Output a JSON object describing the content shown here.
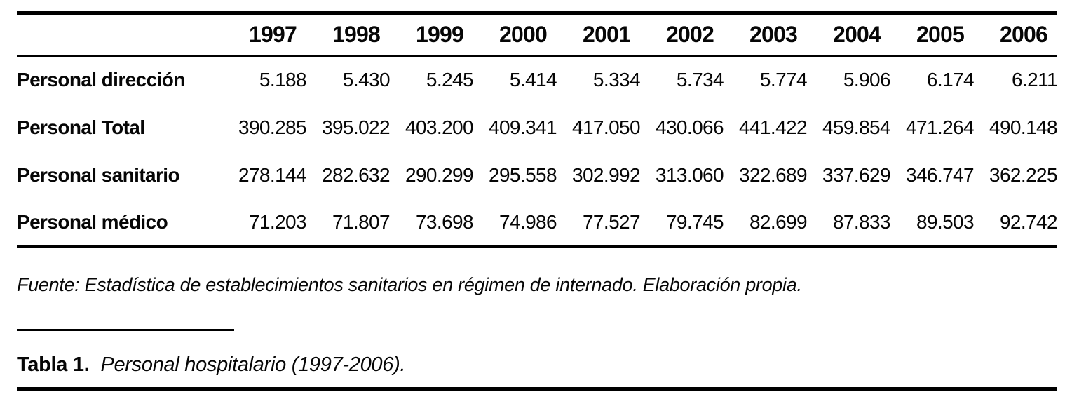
{
  "colors": {
    "ink": "#000000",
    "background": "#ffffff"
  },
  "table": {
    "years": [
      "1997",
      "1998",
      "1999",
      "2000",
      "2001",
      "2002",
      "2003",
      "2004",
      "2005",
      "2006"
    ],
    "rows": [
      {
        "label": "Personal dirección",
        "values": [
          "5.188",
          "5.430",
          "5.245",
          "5.414",
          "5.334",
          "5.734",
          "5.774",
          "5.906",
          "6.174",
          "6.211"
        ]
      },
      {
        "label": "Personal Total",
        "values": [
          "390.285",
          "395.022",
          "403.200",
          "409.341",
          "417.050",
          "430.066",
          "441.422",
          "459.854",
          "471.264",
          "490.148"
        ]
      },
      {
        "label": "Personal sanitario",
        "values": [
          "278.144",
          "282.632",
          "290.299",
          "295.558",
          "302.992",
          "313.060",
          "322.689",
          "337.629",
          "346.747",
          "362.225"
        ]
      },
      {
        "label": "Personal médico",
        "values": [
          "71.203",
          "71.807",
          "73.698",
          "74.986",
          "77.527",
          "79.745",
          "82.699",
          "87.833",
          "89.503",
          "92.742"
        ]
      }
    ]
  },
  "source_note": "Fuente: Estadística de establecimientos sanitarios en régimen de internado. Elaboración propia.",
  "caption": {
    "label": "Tabla 1.",
    "text": "Personal hospitalario (1997-2006)."
  }
}
